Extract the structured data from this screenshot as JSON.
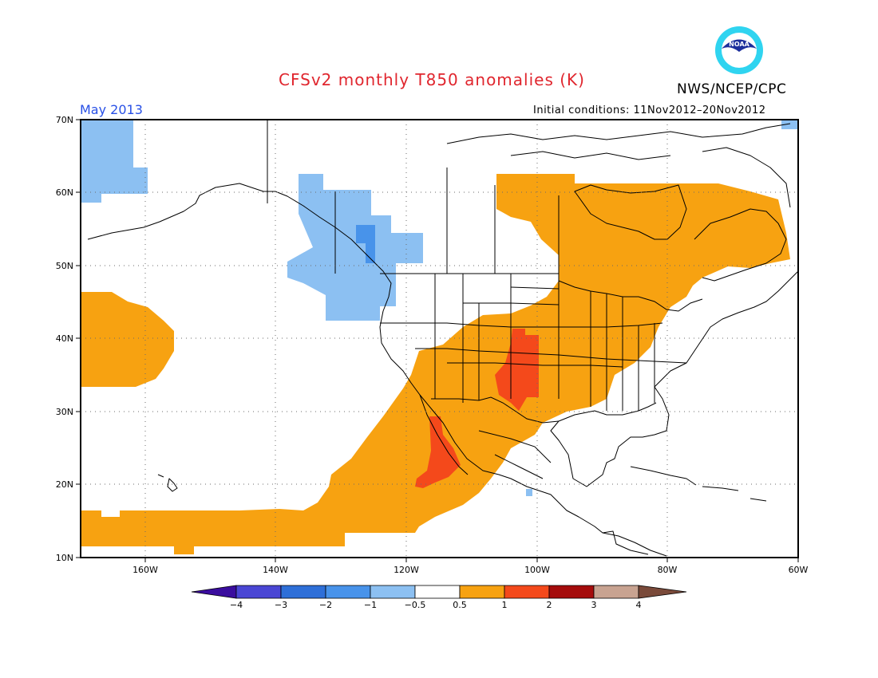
{
  "title": "CFSv2 monthly T850 anomalies (K)",
  "agency": "NWS/NCEP/CPC",
  "logo_text": "NOAA",
  "month": "May 2013",
  "initial_conditions": "Initial conditions: 11Nov2012–20Nov2012",
  "lat_labels": [
    "70N",
    "60N",
    "50N",
    "40N",
    "30N",
    "20N",
    "10N"
  ],
  "lon_labels": [
    "160W",
    "140W",
    "120W",
    "100W",
    "80W",
    "60W"
  ],
  "colorbar": {
    "colors": [
      "#3a0d9e",
      "#4a46d4",
      "#2e6fd8",
      "#4893ea",
      "#8cc0f2",
      "#ffffff",
      "#f7a211",
      "#f4491b",
      "#a50c0c",
      "#c8a391",
      "#7a4a3a"
    ],
    "labels": [
      "−4",
      "−3",
      "−2",
      "−1",
      "−0.5",
      "0.5",
      "1",
      "2",
      "3",
      "4"
    ]
  }
}
